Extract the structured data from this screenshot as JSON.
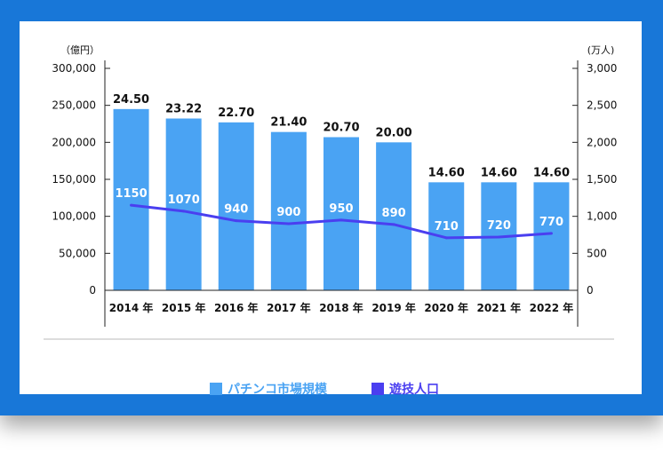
{
  "colors": {
    "frame": "#1877d8",
    "bar": "#4aa3f3",
    "line": "#4a3ff0",
    "axis": "#222222",
    "divider": "#bbbbbb"
  },
  "chart_data": {
    "type": "bar",
    "categories": [
      "2014 年",
      "2015 年",
      "2016 年",
      "2017 年",
      "2018 年",
      "2019 年",
      "2020 年",
      "2021 年",
      "2022 年"
    ],
    "series": [
      {
        "name": "パチンコ市場規模",
        "type": "bar",
        "axis": "left",
        "values": [
          245000,
          232200,
          227000,
          214000,
          207000,
          200000,
          146000,
          146000,
          146000
        ],
        "labels": [
          "24.50",
          "23.22",
          "22.70",
          "21.40",
          "20.70",
          "20.00",
          "14.60",
          "14.60",
          "14.60"
        ]
      },
      {
        "name": "遊技人口",
        "type": "line",
        "axis": "right",
        "values": [
          1150,
          1070,
          940,
          900,
          950,
          890,
          710,
          720,
          770
        ],
        "labels": [
          "1150",
          "1070",
          "940",
          "900",
          "950",
          "890",
          "710",
          "720",
          "770"
        ]
      }
    ],
    "yleft": {
      "unit": "（億円）",
      "ylim": [
        0,
        300000
      ],
      "ticks": [
        0,
        50000,
        100000,
        150000,
        200000,
        250000,
        300000
      ],
      "tick_labels": [
        "0",
        "50,000",
        "100,000",
        "150,000",
        "200,000",
        "250,000",
        "300,000"
      ]
    },
    "yright": {
      "unit": "(万人)",
      "ylim": [
        0,
        3000
      ],
      "ticks": [
        0,
        500,
        1000,
        1500,
        2000,
        2500,
        3000
      ],
      "tick_labels": [
        "0",
        "500",
        "1,000",
        "1,500",
        "2,000",
        "2,500",
        "3,000"
      ]
    },
    "grid": false,
    "legend_position": "bottom"
  },
  "legend": {
    "items": [
      {
        "label": "パチンコ市場規模",
        "color": "#4aa3f3"
      },
      {
        "label": "遊技人口",
        "color": "#4a3ff0"
      }
    ]
  }
}
